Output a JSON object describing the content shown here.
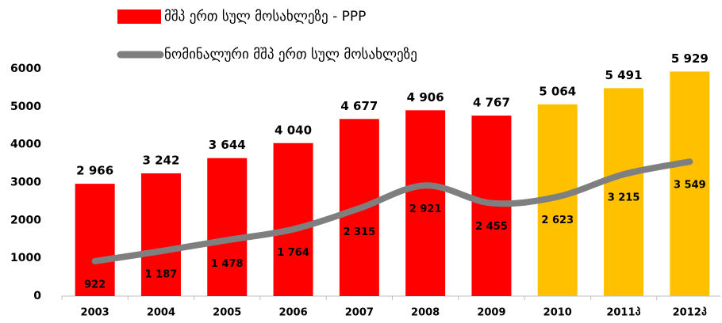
{
  "chart_data": {
    "type": "bar",
    "categories": [
      "2003",
      "2004",
      "2005",
      "2006",
      "2007",
      "2008",
      "2009",
      "2010",
      "2011პ",
      "2012პ"
    ],
    "series": [
      {
        "name": "მშპ ერთ სულ მოსახლეზე - PPP",
        "type": "bar",
        "color": "#ff0000",
        "colors": [
          "#ff0000",
          "#ff0000",
          "#ff0000",
          "#ff0000",
          "#ff0000",
          "#ff0000",
          "#ff0000",
          "#ffc000",
          "#ffc000",
          "#ffc000"
        ],
        "values": [
          2966,
          3242,
          3644,
          4040,
          4677,
          4906,
          4767,
          5064,
          5491,
          5929
        ],
        "value_labels": [
          "2 966",
          "3 242",
          "3 644",
          "4 040",
          "4 677",
          "4 906",
          "4 767",
          "5 064",
          "5 491",
          "5 929"
        ]
      },
      {
        "name": "ნომინალური მშპ ერთ სულ მოსახლეზე",
        "type": "line",
        "color": "#7f7f7f",
        "values": [
          922,
          1187,
          1478,
          1764,
          2315,
          2921,
          2455,
          2623,
          3215,
          3549
        ],
        "value_labels": [
          "922",
          "1 187",
          "1 478",
          "1 764",
          "2 315",
          "2 921",
          "2 455",
          "2 623",
          "3 215",
          "3 549"
        ]
      }
    ],
    "ylim": [
      0,
      6000
    ],
    "yticks": [
      0,
      1000,
      2000,
      3000,
      4000,
      5000,
      6000
    ],
    "grid": false,
    "legend": "top"
  }
}
